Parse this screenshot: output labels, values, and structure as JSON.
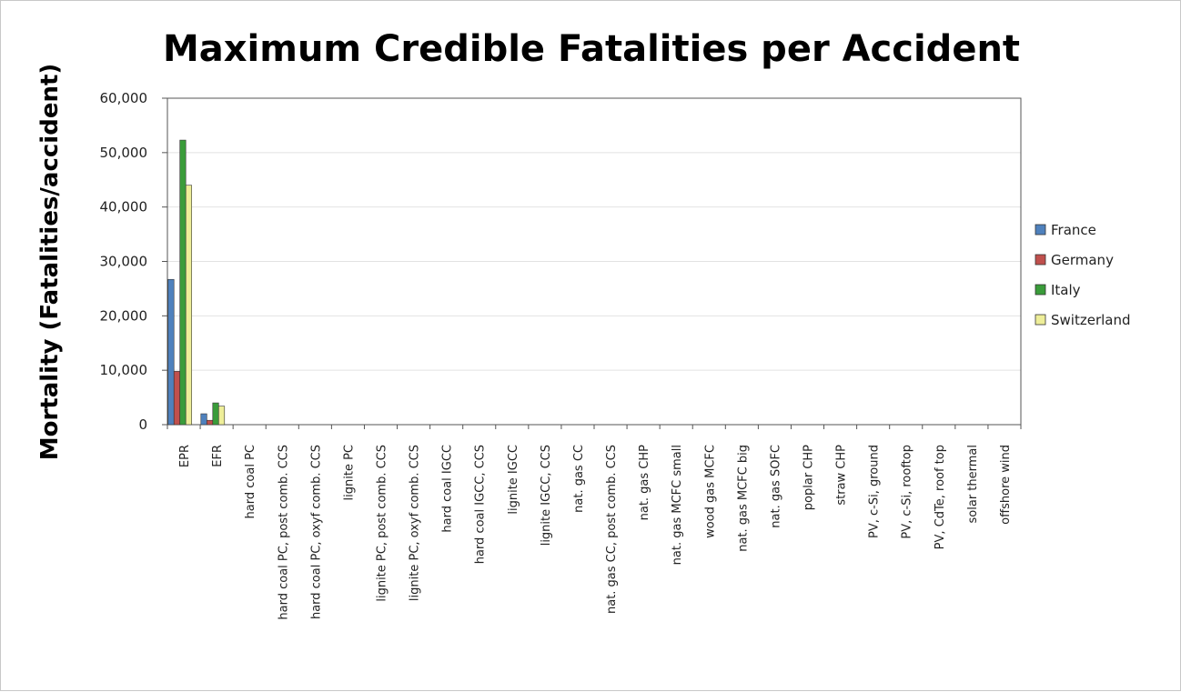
{
  "chart_data": {
    "type": "bar",
    "title": "Maximum Credible Fatalities per Accident",
    "xlabel": "",
    "ylabel": "Mortality (Fatalities/accident)",
    "ylim": [
      0,
      60000
    ],
    "ytick_labels": [
      "0",
      "10,000",
      "20,000",
      "30,000",
      "40,000",
      "50,000",
      "60,000"
    ],
    "grid": true,
    "legend_position": "right",
    "categories": [
      "EPR",
      "EFR",
      "hard coal PC",
      "hard coal PC, post comb. CCS",
      "hard coal PC, oxyf comb. CCS",
      "lignite PC",
      "lignite PC, post comb. CCS",
      "lignite PC, oxyf comb. CCS",
      "hard coal IGCC",
      "hard coal IGCC, CCS",
      "lignite IGCC",
      "lignite IGCC, CCS",
      "nat. gas CC",
      "nat. gas CC, post comb. CCS",
      "nat. gas CHP",
      "nat. gas MCFC small",
      "wood gas MCFC",
      "nat. gas MCFC big",
      "nat. gas SOFC",
      "poplar CHP",
      "straw CHP",
      "PV, c-Si, ground",
      "PV, c-Si, rooftop",
      "PV, CdTe, roof top",
      "solar thermal",
      "offshore wind"
    ],
    "series": [
      {
        "name": "France",
        "color": "#4f81bd",
        "values": [
          26700,
          2000,
          0,
          0,
          0,
          0,
          0,
          0,
          0,
          0,
          0,
          0,
          0,
          0,
          0,
          0,
          0,
          0,
          0,
          0,
          0,
          0,
          0,
          0,
          0,
          0
        ]
      },
      {
        "name": "Germany",
        "color": "#c0504d",
        "values": [
          9800,
          800,
          0,
          0,
          0,
          0,
          0,
          0,
          0,
          0,
          0,
          0,
          0,
          0,
          0,
          0,
          0,
          0,
          0,
          0,
          0,
          0,
          0,
          0,
          0,
          0
        ]
      },
      {
        "name": "Italy",
        "color": "#3a9c3a",
        "values": [
          52300,
          4000,
          0,
          0,
          0,
          0,
          0,
          0,
          0,
          0,
          0,
          0,
          0,
          0,
          0,
          0,
          0,
          0,
          0,
          0,
          0,
          0,
          0,
          0,
          0,
          0
        ]
      },
      {
        "name": "Switzerland",
        "color": "#eeee99",
        "values": [
          44000,
          3400,
          0,
          0,
          0,
          0,
          0,
          0,
          0,
          0,
          0,
          0,
          0,
          0,
          0,
          0,
          0,
          0,
          0,
          0,
          0,
          0,
          0,
          0,
          0,
          0
        ]
      }
    ]
  }
}
